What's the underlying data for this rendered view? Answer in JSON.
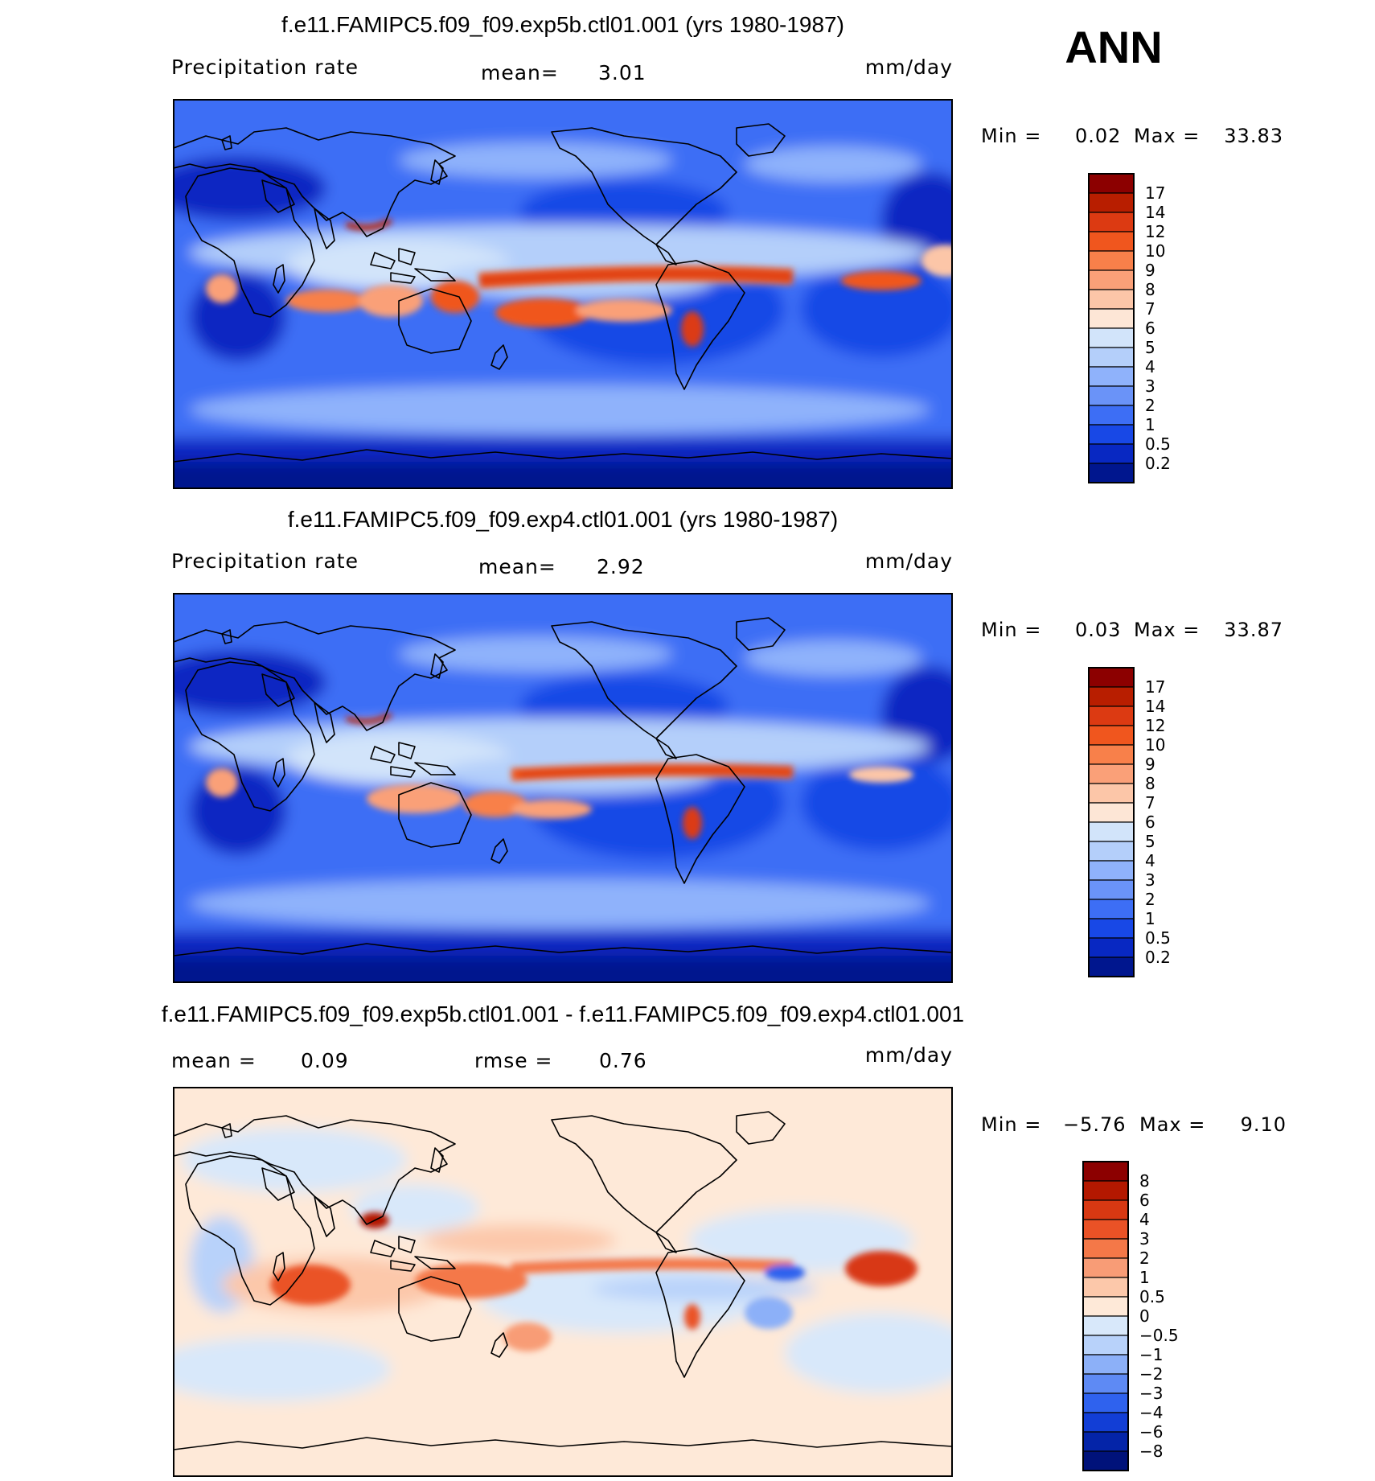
{
  "season": "ANN",
  "units": "mm/day",
  "chart_data": [
    {
      "type": "heatmap",
      "title": "f.e11.FAMIPC5.f09_f09.exp5b.ctl01.001 (yrs 1980-1987)",
      "variable": "Precipitation rate",
      "units": "mm/day",
      "mean_label": "mean=",
      "mean": "3.01",
      "min_label": "Min =",
      "min": "0.02",
      "max_label": "Max =",
      "max": "33.83",
      "colorbar_levels": [
        "17",
        "14",
        "12",
        "10",
        "9",
        "8",
        "7",
        "6",
        "5",
        "4",
        "3",
        "2",
        "1",
        "0.5",
        "0.2"
      ],
      "colorbar_colors": [
        "#8c0000",
        "#b81e00",
        "#dc3a12",
        "#f0561e",
        "#f8804a",
        "#faa078",
        "#fcc6a8",
        "#fde6d6",
        "#d2e4fa",
        "#b4cffa",
        "#8fb2fb",
        "#6a93f8",
        "#3d6ef5",
        "#1848e6",
        "#0828c2",
        "#00168e"
      ]
    },
    {
      "type": "heatmap",
      "title": "f.e11.FAMIPC5.f09_f09.exp4.ctl01.001 (yrs 1980-1987)",
      "variable": "Precipitation rate",
      "units": "mm/day",
      "mean_label": "mean=",
      "mean": "2.92",
      "min_label": "Min =",
      "min": "0.03",
      "max_label": "Max =",
      "max": "33.87",
      "colorbar_levels": [
        "17",
        "14",
        "12",
        "10",
        "9",
        "8",
        "7",
        "6",
        "5",
        "4",
        "3",
        "2",
        "1",
        "0.5",
        "0.2"
      ],
      "colorbar_colors": [
        "#8c0000",
        "#b81e00",
        "#dc3a12",
        "#f0561e",
        "#f8804a",
        "#faa078",
        "#fcc6a8",
        "#fde6d6",
        "#d2e4fa",
        "#b4cffa",
        "#8fb2fb",
        "#6a93f8",
        "#3d6ef5",
        "#1848e6",
        "#0828c2",
        "#00168e"
      ]
    },
    {
      "type": "heatmap",
      "title": "f.e11.FAMIPC5.f09_f09.exp5b.ctl01.001 - f.e11.FAMIPC5.f09_f09.exp4.ctl01.001",
      "units": "mm/day",
      "mean_label": "mean =",
      "mean": "0.09",
      "rmse_label": "rmse =",
      "rmse": "0.76",
      "min_label": "Min =",
      "min": "−5.76",
      "max_label": "Max =",
      "max": "9.10",
      "colorbar_levels": [
        "8",
        "6",
        "4",
        "3",
        "2",
        "1",
        "0.5",
        "0",
        "−0.5",
        "−1",
        "−2",
        "−3",
        "−4",
        "−6",
        "−8"
      ],
      "colorbar_colors": [
        "#8c0000",
        "#b41800",
        "#d83812",
        "#ea5226",
        "#f47848",
        "#f89c76",
        "#fcc8aa",
        "#fee9d8",
        "#d8e8fa",
        "#b8d2fa",
        "#8cb0f8",
        "#5e8af4",
        "#2f62ee",
        "#123ed6",
        "#0424a8",
        "#00127a"
      ]
    }
  ]
}
